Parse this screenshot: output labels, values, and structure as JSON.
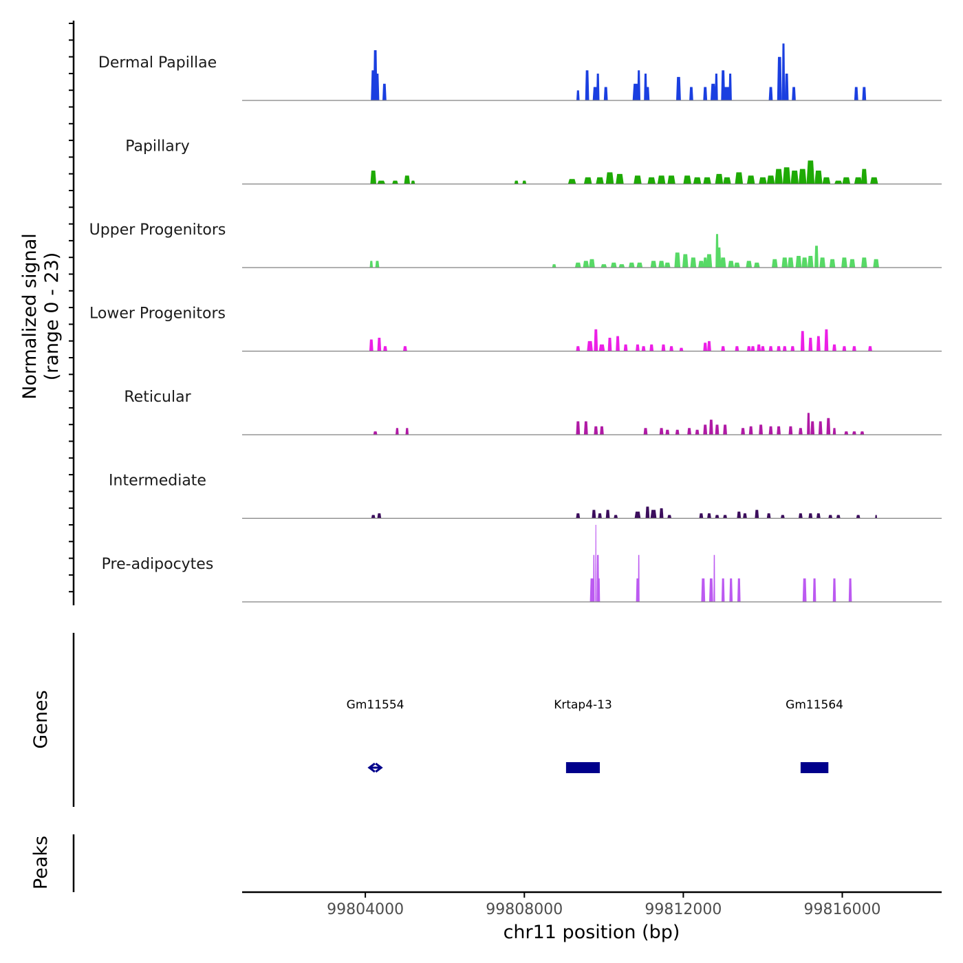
{
  "chart_data": {
    "type": "area",
    "title": "",
    "ylabel": "Normalized signal",
    "ylabel_range": "(range 0 - 23)",
    "xlabel": "chr11 position (bp)",
    "ylim": [
      0,
      23
    ],
    "xlim": [
      99800900,
      99818500
    ],
    "x_ticks": [
      99804000,
      99808000,
      99812000,
      99816000
    ],
    "x_tick_labels": [
      "99804000",
      "99808000",
      "99812000",
      "99816000"
    ],
    "tracks": [
      {
        "name": "Dermal Papillae",
        "color": "#1a3fe0",
        "peaks": [
          [
            99804200,
            120,
            9
          ],
          [
            99804250,
            100,
            15
          ],
          [
            99804300,
            100,
            8
          ],
          [
            99804480,
            100,
            5
          ],
          [
            99809350,
            80,
            3
          ],
          [
            99809580,
            100,
            9
          ],
          [
            99809780,
            120,
            4
          ],
          [
            99809850,
            80,
            8
          ],
          [
            99810050,
            100,
            4
          ],
          [
            99810800,
            150,
            5
          ],
          [
            99810880,
            80,
            9
          ],
          [
            99811050,
            80,
            8
          ],
          [
            99811100,
            100,
            4
          ],
          [
            99811880,
            120,
            7
          ],
          [
            99812200,
            100,
            4
          ],
          [
            99812550,
            100,
            4
          ],
          [
            99812750,
            130,
            5
          ],
          [
            99812830,
            80,
            8
          ],
          [
            99813000,
            100,
            9
          ],
          [
            99813180,
            80,
            8
          ],
          [
            99813100,
            200,
            4
          ],
          [
            99814200,
            100,
            4
          ],
          [
            99814420,
            120,
            13
          ],
          [
            99814520,
            80,
            17
          ],
          [
            99814600,
            100,
            8
          ],
          [
            99814780,
            100,
            4
          ],
          [
            99816350,
            100,
            4
          ],
          [
            99816550,
            100,
            4
          ]
        ]
      },
      {
        "name": "Papillary",
        "color": "#1eaa05",
        "peaks": [
          [
            99804200,
            150,
            4
          ],
          [
            99804400,
            200,
            1
          ],
          [
            99804750,
            150,
            1
          ],
          [
            99805050,
            150,
            2.5
          ],
          [
            99805200,
            100,
            1
          ],
          [
            99807800,
            100,
            1
          ],
          [
            99808000,
            100,
            1
          ],
          [
            99809200,
            200,
            1.5
          ],
          [
            99809600,
            200,
            2
          ],
          [
            99809900,
            200,
            2
          ],
          [
            99810150,
            200,
            3.5
          ],
          [
            99810400,
            200,
            3
          ],
          [
            99810850,
            200,
            2.5
          ],
          [
            99811200,
            200,
            2
          ],
          [
            99811450,
            200,
            2.5
          ],
          [
            99811700,
            200,
            2.5
          ],
          [
            99812100,
            200,
            2.5
          ],
          [
            99812350,
            200,
            2
          ],
          [
            99812600,
            200,
            2
          ],
          [
            99812900,
            200,
            3
          ],
          [
            99813100,
            200,
            2
          ],
          [
            99813400,
            200,
            3.5
          ],
          [
            99813700,
            200,
            2.5
          ],
          [
            99814000,
            200,
            2
          ],
          [
            99814200,
            200,
            2.5
          ],
          [
            99814400,
            200,
            4.5
          ],
          [
            99814600,
            200,
            5
          ],
          [
            99814800,
            200,
            4
          ],
          [
            99815000,
            200,
            4.5
          ],
          [
            99815200,
            200,
            7
          ],
          [
            99815400,
            200,
            4
          ],
          [
            99815600,
            200,
            2
          ],
          [
            99815900,
            200,
            1
          ],
          [
            99816100,
            200,
            2
          ],
          [
            99816400,
            200,
            2
          ],
          [
            99816550,
            150,
            4.5
          ],
          [
            99816800,
            200,
            2
          ]
        ]
      },
      {
        "name": "Upper Progenitors",
        "color": "#57d966",
        "peaks": [
          [
            99804150,
            80,
            2
          ],
          [
            99804300,
            100,
            2
          ],
          [
            99808750,
            100,
            1
          ],
          [
            99809350,
            150,
            1.5
          ],
          [
            99809550,
            150,
            2
          ],
          [
            99809700,
            150,
            2.5
          ],
          [
            99810000,
            150,
            1
          ],
          [
            99810250,
            150,
            1.5
          ],
          [
            99810450,
            150,
            1
          ],
          [
            99810700,
            150,
            1.5
          ],
          [
            99810900,
            150,
            1.5
          ],
          [
            99811250,
            150,
            2
          ],
          [
            99811450,
            150,
            2
          ],
          [
            99811600,
            150,
            1.5
          ],
          [
            99811850,
            150,
            4.5
          ],
          [
            99812050,
            150,
            4
          ],
          [
            99812250,
            150,
            3
          ],
          [
            99812450,
            150,
            2
          ],
          [
            99812550,
            100,
            3
          ],
          [
            99812650,
            150,
            4
          ],
          [
            99812850,
            80,
            10
          ],
          [
            99812900,
            100,
            6
          ],
          [
            99813000,
            150,
            3
          ],
          [
            99813200,
            150,
            2
          ],
          [
            99813350,
            150,
            1.5
          ],
          [
            99813650,
            150,
            2
          ],
          [
            99813850,
            150,
            1.5
          ],
          [
            99814300,
            150,
            2.5
          ],
          [
            99814550,
            150,
            3
          ],
          [
            99814700,
            150,
            3
          ],
          [
            99814900,
            150,
            3.5
          ],
          [
            99815050,
            150,
            3
          ],
          [
            99815200,
            150,
            3.5
          ],
          [
            99815350,
            100,
            6.5
          ],
          [
            99815500,
            150,
            3
          ],
          [
            99815750,
            150,
            2.5
          ],
          [
            99816050,
            150,
            3
          ],
          [
            99816250,
            150,
            2.5
          ],
          [
            99816550,
            150,
            3
          ],
          [
            99816850,
            150,
            2.5
          ]
        ]
      },
      {
        "name": "Lower Progenitors",
        "color": "#ec1fe6",
        "peaks": [
          [
            99804150,
            100,
            3.5
          ],
          [
            99804350,
            100,
            4
          ],
          [
            99804500,
            100,
            1.5
          ],
          [
            99805000,
            100,
            1.5
          ],
          [
            99809350,
            100,
            1.5
          ],
          [
            99809650,
            150,
            3
          ],
          [
            99809800,
            100,
            6.5
          ],
          [
            99809950,
            150,
            2
          ],
          [
            99810150,
            100,
            4
          ],
          [
            99810350,
            100,
            4.5
          ],
          [
            99810550,
            100,
            2
          ],
          [
            99810850,
            100,
            2
          ],
          [
            99811000,
            100,
            1.5
          ],
          [
            99811200,
            100,
            2
          ],
          [
            99811500,
            100,
            2
          ],
          [
            99811700,
            100,
            1.5
          ],
          [
            99811950,
            100,
            1
          ],
          [
            99812550,
            100,
            2.5
          ],
          [
            99812650,
            100,
            3
          ],
          [
            99813000,
            100,
            1.5
          ],
          [
            99813350,
            100,
            1.5
          ],
          [
            99813650,
            100,
            1.5
          ],
          [
            99813750,
            100,
            1.5
          ],
          [
            99813900,
            100,
            2
          ],
          [
            99814000,
            100,
            1.5
          ],
          [
            99814200,
            100,
            1.5
          ],
          [
            99814400,
            100,
            1.5
          ],
          [
            99814550,
            100,
            1.5
          ],
          [
            99814750,
            100,
            1.5
          ],
          [
            99815000,
            100,
            6
          ],
          [
            99815200,
            100,
            4
          ],
          [
            99815400,
            100,
            4.5
          ],
          [
            99815600,
            100,
            6.5
          ],
          [
            99815800,
            100,
            2
          ],
          [
            99816050,
            100,
            1.5
          ],
          [
            99816300,
            100,
            1.5
          ],
          [
            99816700,
            100,
            1.5
          ]
        ]
      },
      {
        "name": "Reticular",
        "color": "#b01aa5",
        "peaks": [
          [
            99804250,
            100,
            1
          ],
          [
            99804800,
            80,
            2
          ],
          [
            99805050,
            80,
            2
          ],
          [
            99809350,
            100,
            4
          ],
          [
            99809550,
            100,
            4
          ],
          [
            99809800,
            100,
            2.5
          ],
          [
            99809950,
            100,
            2.5
          ],
          [
            99811050,
            100,
            2
          ],
          [
            99811450,
            100,
            2
          ],
          [
            99811600,
            100,
            1.5
          ],
          [
            99811850,
            100,
            1.5
          ],
          [
            99812150,
            100,
            2
          ],
          [
            99812350,
            100,
            1.5
          ],
          [
            99812550,
            100,
            3
          ],
          [
            99812700,
            100,
            4.5
          ],
          [
            99812850,
            100,
            3
          ],
          [
            99813050,
            100,
            3
          ],
          [
            99813500,
            100,
            2
          ],
          [
            99813700,
            100,
            2.5
          ],
          [
            99813950,
            100,
            3
          ],
          [
            99814200,
            100,
            2.5
          ],
          [
            99814400,
            100,
            2.5
          ],
          [
            99814700,
            100,
            2.5
          ],
          [
            99814950,
            100,
            2
          ],
          [
            99815150,
            80,
            6.5
          ],
          [
            99815250,
            100,
            4
          ],
          [
            99815450,
            100,
            4
          ],
          [
            99815650,
            100,
            5
          ],
          [
            99815800,
            80,
            2
          ],
          [
            99816100,
            100,
            1
          ],
          [
            99816300,
            100,
            1
          ],
          [
            99816500,
            100,
            1
          ]
        ]
      },
      {
        "name": "Intermediate",
        "color": "#3b0d5c",
        "peaks": [
          [
            99804200,
            100,
            1
          ],
          [
            99804350,
            100,
            1.5
          ],
          [
            99809350,
            100,
            1.5
          ],
          [
            99809750,
            100,
            2.5
          ],
          [
            99809900,
            100,
            1.5
          ],
          [
            99810100,
            100,
            2.5
          ],
          [
            99810300,
            100,
            1
          ],
          [
            99810850,
            150,
            2
          ],
          [
            99811100,
            100,
            3.5
          ],
          [
            99811250,
            150,
            2.5
          ],
          [
            99811450,
            100,
            3
          ],
          [
            99811650,
            100,
            1
          ],
          [
            99812450,
            100,
            1.5
          ],
          [
            99812650,
            100,
            1.5
          ],
          [
            99812850,
            100,
            1
          ],
          [
            99813050,
            100,
            1
          ],
          [
            99813400,
            100,
            2
          ],
          [
            99813550,
            100,
            1.5
          ],
          [
            99813850,
            100,
            2.5
          ],
          [
            99814150,
            100,
            1.5
          ],
          [
            99814500,
            100,
            1
          ],
          [
            99814950,
            100,
            1.5
          ],
          [
            99815200,
            100,
            1.5
          ],
          [
            99815400,
            100,
            1.5
          ],
          [
            99815700,
            100,
            1
          ],
          [
            99815900,
            100,
            1
          ],
          [
            99816400,
            100,
            1
          ],
          [
            99816850,
            50,
            1
          ]
        ]
      },
      {
        "name": "Pre-adipocytes",
        "color": "#bc5af1",
        "peaks": [
          [
            99809700,
            100,
            7
          ],
          [
            99809750,
            40,
            14
          ],
          [
            99809800,
            30,
            23
          ],
          [
            99809850,
            60,
            14
          ],
          [
            99809880,
            50,
            7
          ],
          [
            99810850,
            80,
            7
          ],
          [
            99810880,
            40,
            14
          ],
          [
            99812500,
            100,
            7
          ],
          [
            99812700,
            100,
            7
          ],
          [
            99812780,
            40,
            14
          ],
          [
            99813000,
            80,
            7
          ],
          [
            99813200,
            80,
            7
          ],
          [
            99813400,
            80,
            7
          ],
          [
            99815050,
            100,
            7
          ],
          [
            99815300,
            80,
            7
          ],
          [
            99815800,
            80,
            7
          ],
          [
            99816200,
            80,
            7
          ]
        ]
      }
    ],
    "genes_label": "Genes",
    "genes": [
      {
        "name": "Gm11554",
        "start": 99804100,
        "end": 99804400,
        "strand": "both",
        "style": "arrow"
      },
      {
        "name": "Krtap4-13",
        "start": 99809050,
        "end": 99809900,
        "strand": "-",
        "style": "block"
      },
      {
        "name": "Gm11564",
        "start": 99814950,
        "end": 99815650,
        "strand": "-",
        "style": "block"
      }
    ],
    "peaks_label": "Peaks",
    "gene_color": "#00008b",
    "baseline_color": "#808080"
  }
}
